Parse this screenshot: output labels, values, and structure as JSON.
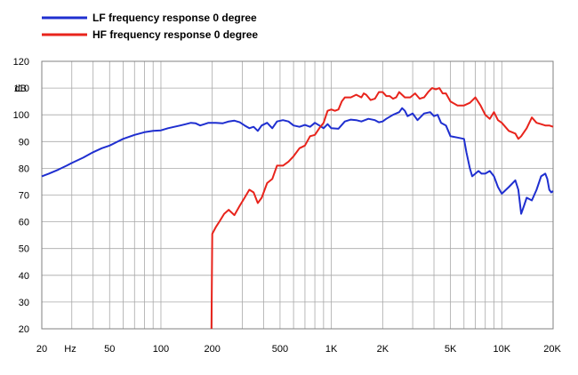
{
  "chart_data": {
    "type": "line",
    "title": "",
    "xlabel": "",
    "ylabel": "dB",
    "xscale": "log",
    "xlim": [
      20,
      20000
    ],
    "ylim": [
      20,
      120
    ],
    "grid": true,
    "legend_position": "top-left",
    "x_tick_labels": [
      {
        "value": 20,
        "label": "20"
      },
      {
        "value": 50,
        "label": "50"
      },
      {
        "value": 100,
        "label": "100"
      },
      {
        "value": 200,
        "label": "200"
      },
      {
        "value": 500,
        "label": "500"
      },
      {
        "value": 1000,
        "label": "1K"
      },
      {
        "value": 2000,
        "label": "2K"
      },
      {
        "value": 5000,
        "label": "5K"
      },
      {
        "value": 10000,
        "label": "10K"
      },
      {
        "value": 20000,
        "label": "20K"
      }
    ],
    "x_unit_label": "Hz",
    "y_ticks": [
      20,
      30,
      40,
      50,
      60,
      70,
      80,
      90,
      100,
      110,
      120
    ],
    "series": [
      {
        "name": "LF frequency response 0 degree",
        "color": "#1f2fd0",
        "points": [
          [
            20,
            77
          ],
          [
            22,
            78
          ],
          [
            25,
            79.5
          ],
          [
            28,
            81
          ],
          [
            30,
            82
          ],
          [
            35,
            84
          ],
          [
            40,
            86
          ],
          [
            45,
            87.5
          ],
          [
            50,
            88.5
          ],
          [
            55,
            89.8
          ],
          [
            60,
            91
          ],
          [
            70,
            92.5
          ],
          [
            80,
            93.5
          ],
          [
            90,
            94
          ],
          [
            100,
            94.2
          ],
          [
            110,
            95
          ],
          [
            120,
            95.5
          ],
          [
            130,
            96
          ],
          [
            140,
            96.5
          ],
          [
            150,
            97
          ],
          [
            160,
            96.8
          ],
          [
            170,
            96
          ],
          [
            180,
            96.5
          ],
          [
            190,
            97
          ],
          [
            210,
            97
          ],
          [
            230,
            96.8
          ],
          [
            250,
            97.5
          ],
          [
            270,
            97.8
          ],
          [
            290,
            97.2
          ],
          [
            310,
            96
          ],
          [
            330,
            95
          ],
          [
            350,
            95.5
          ],
          [
            370,
            94
          ],
          [
            390,
            96
          ],
          [
            420,
            97
          ],
          [
            450,
            95
          ],
          [
            480,
            97.5
          ],
          [
            520,
            98
          ],
          [
            560,
            97.5
          ],
          [
            600,
            96
          ],
          [
            650,
            95.5
          ],
          [
            700,
            96.2
          ],
          [
            750,
            95.5
          ],
          [
            800,
            97
          ],
          [
            850,
            96
          ],
          [
            900,
            95
          ],
          [
            950,
            96.5
          ],
          [
            1000,
            95
          ],
          [
            1100,
            94.8
          ],
          [
            1200,
            97.5
          ],
          [
            1300,
            98.2
          ],
          [
            1400,
            98
          ],
          [
            1500,
            97.5
          ],
          [
            1650,
            98.5
          ],
          [
            1800,
            98
          ],
          [
            1900,
            97.2
          ],
          [
            2000,
            97.5
          ],
          [
            2100,
            98.5
          ],
          [
            2300,
            100
          ],
          [
            2500,
            101
          ],
          [
            2600,
            102.5
          ],
          [
            2700,
            101.5
          ],
          [
            2800,
            99.5
          ],
          [
            3000,
            100.5
          ],
          [
            3200,
            98
          ],
          [
            3500,
            100.5
          ],
          [
            3800,
            101
          ],
          [
            4000,
            99.5
          ],
          [
            4200,
            100
          ],
          [
            4400,
            97
          ],
          [
            4700,
            96
          ],
          [
            5000,
            92
          ],
          [
            5500,
            91.5
          ],
          [
            6000,
            91
          ],
          [
            6200,
            86
          ],
          [
            6500,
            80
          ],
          [
            6700,
            77
          ],
          [
            7000,
            78
          ],
          [
            7300,
            79
          ],
          [
            7600,
            78
          ],
          [
            8000,
            78
          ],
          [
            8500,
            79
          ],
          [
            9000,
            77
          ],
          [
            9500,
            73
          ],
          [
            10000,
            70.5
          ],
          [
            11000,
            73
          ],
          [
            12000,
            75.5
          ],
          [
            12500,
            72
          ],
          [
            13000,
            63
          ],
          [
            13500,
            66
          ],
          [
            14000,
            69
          ],
          [
            15000,
            68
          ],
          [
            16000,
            72
          ],
          [
            17000,
            77
          ],
          [
            18000,
            78
          ],
          [
            18500,
            76
          ],
          [
            19000,
            72
          ],
          [
            19500,
            71
          ],
          [
            20000,
            71.5
          ]
        ]
      },
      {
        "name": "HF frequency response 0 degree",
        "color": "#e8241c",
        "points": [
          [
            198,
            20
          ],
          [
            200,
            55.5
          ],
          [
            210,
            58
          ],
          [
            220,
            60
          ],
          [
            235,
            63
          ],
          [
            250,
            64.5
          ],
          [
            270,
            62.5
          ],
          [
            290,
            66
          ],
          [
            310,
            69
          ],
          [
            330,
            72
          ],
          [
            350,
            71
          ],
          [
            370,
            67
          ],
          [
            390,
            69
          ],
          [
            420,
            74.5
          ],
          [
            450,
            76
          ],
          [
            480,
            81
          ],
          [
            520,
            81
          ],
          [
            560,
            82.5
          ],
          [
            600,
            84.5
          ],
          [
            650,
            87.5
          ],
          [
            700,
            88.5
          ],
          [
            750,
            92
          ],
          [
            800,
            92.5
          ],
          [
            850,
            95
          ],
          [
            900,
            97
          ],
          [
            950,
            101.5
          ],
          [
            1000,
            102
          ],
          [
            1050,
            101.5
          ],
          [
            1100,
            102
          ],
          [
            1150,
            105
          ],
          [
            1200,
            106.5
          ],
          [
            1300,
            106.5
          ],
          [
            1400,
            107.5
          ],
          [
            1500,
            106.5
          ],
          [
            1550,
            108
          ],
          [
            1600,
            107.5
          ],
          [
            1700,
            105.5
          ],
          [
            1800,
            106
          ],
          [
            1900,
            108.5
          ],
          [
            2000,
            108.5
          ],
          [
            2100,
            107
          ],
          [
            2200,
            107
          ],
          [
            2300,
            106
          ],
          [
            2400,
            106.5
          ],
          [
            2500,
            108.5
          ],
          [
            2700,
            106.5
          ],
          [
            2900,
            106.5
          ],
          [
            3100,
            108
          ],
          [
            3300,
            106
          ],
          [
            3500,
            106.5
          ],
          [
            3700,
            108.5
          ],
          [
            3900,
            110
          ],
          [
            4100,
            109.5
          ],
          [
            4300,
            110
          ],
          [
            4500,
            108
          ],
          [
            4700,
            108
          ],
          [
            5000,
            105
          ],
          [
            5500,
            103.5
          ],
          [
            6000,
            103.5
          ],
          [
            6500,
            104.5
          ],
          [
            7000,
            106.5
          ],
          [
            7500,
            103.5
          ],
          [
            8000,
            100
          ],
          [
            8500,
            98.5
          ],
          [
            9000,
            101
          ],
          [
            9500,
            98
          ],
          [
            10000,
            97
          ],
          [
            11000,
            94
          ],
          [
            12000,
            93
          ],
          [
            12500,
            91
          ],
          [
            13000,
            92
          ],
          [
            14000,
            95
          ],
          [
            15000,
            99
          ],
          [
            16000,
            97
          ],
          [
            17000,
            96.5
          ],
          [
            18000,
            96
          ],
          [
            19000,
            96
          ],
          [
            20000,
            95.5
          ]
        ]
      }
    ]
  }
}
